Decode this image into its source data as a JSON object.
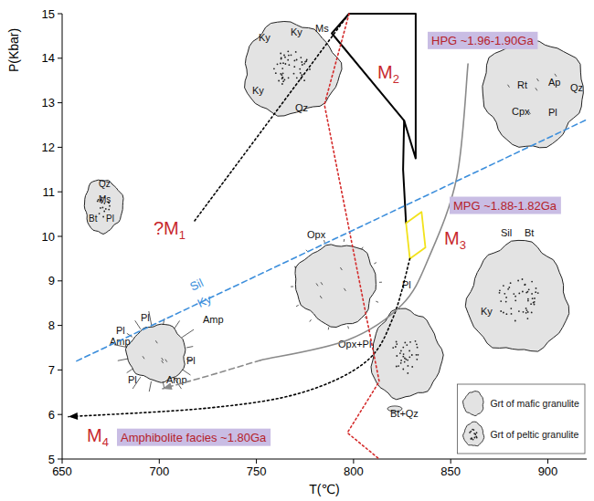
{
  "chart_data": {
    "type": "line",
    "xlabel": "T(℃)",
    "ylabel": "P(Kbar)",
    "xlim": [
      650,
      920
    ],
    "xticks": [
      650,
      700,
      750,
      800,
      850,
      900
    ],
    "ylim": [
      5,
      15
    ],
    "yticks": [
      5,
      6,
      7,
      8,
      9,
      10,
      11,
      12,
      13,
      14,
      15
    ],
    "grid": false,
    "series": [
      {
        "type": "line",
        "x": [
          718.2,
          797.7
        ],
        "values": [
          10.35,
          15
        ],
        "color": "#000000",
        "line_style": "dotted"
      },
      {
        "type": "line",
        "x": [
          797.7,
          832,
          832,
          826,
          788.8,
          797.7
        ],
        "values": [
          15,
          15,
          11.75,
          12.6,
          14.56,
          15
        ],
        "color": "#000000",
        "line_style": "solid"
      },
      {
        "type": "line",
        "x": [
          826,
          825.5,
          827
        ],
        "values": [
          12.6,
          11.5,
          10.3
        ],
        "color": "#000000",
        "line_style": "solid"
      },
      {
        "type": "line",
        "x": [
          827,
          835,
          837,
          829,
          827
        ],
        "values": [
          10.3,
          10.55,
          9.75,
          9.5,
          10.3
        ],
        "color": "#f2e21b",
        "line_style": "solid"
      },
      {
        "type": "spline",
        "x": [
          829,
          820.3,
          806.2,
          773.2,
          726.2,
          653.3
        ],
        "values": [
          9.5,
          8.17,
          7.18,
          6.49,
          6.15,
          5.95
        ],
        "color": "#000000",
        "line_style": "dotted",
        "marker": "arrow"
      },
      {
        "type": "spline",
        "x": [
          858.9,
          853.2,
          839,
          825,
          796.8,
          752.1
        ],
        "values": [
          13.87,
          11.34,
          9.55,
          8.47,
          7.67,
          7.22
        ],
        "color": "#8a8a8a",
        "line_style": "solid"
      },
      {
        "type": "line",
        "x": [
          752.1,
          726.2,
          701.7
        ],
        "values": [
          7.22,
          6.88,
          6.58
        ],
        "color": "#8a8a8a",
        "line_style": "dashed",
        "marker": "arrow"
      },
      {
        "type": "line",
        "x": [
          797.7,
          785,
          813.2,
          796.8,
          813.2
        ],
        "values": [
          15,
          12.96,
          6.74,
          5.59,
          5.0
        ],
        "color": "#d42a2a",
        "line_style": "dotted"
      },
      {
        "type": "line",
        "x": [
          657.5,
          920
        ],
        "values": [
          7.2,
          12.62
        ],
        "color": "#3d8fdc",
        "line_style": "dashed"
      }
    ],
    "annotations": [
      "?M1",
      "M2",
      "M3",
      "M4",
      "HPG ~1.96-1.90Ga",
      "MPG ~1.88-1.82Ga",
      "Amphibolite facies ~1.80Ga",
      "Ky",
      "Sil"
    ],
    "sketches": [
      {
        "marker": "dotted",
        "minerals": [
          "Ky",
          "Ky",
          "Ms",
          "Ky",
          "Qz"
        ]
      },
      {
        "marker": "dotted",
        "minerals": [
          "Qz",
          "Ms",
          "Bt",
          "Pl"
        ]
      },
      {
        "marker": "plain",
        "minerals": [
          "Rt",
          "Ap",
          "Qz",
          "Cpx",
          "Pl"
        ]
      },
      {
        "marker": "plain",
        "minerals": [
          "Opx",
          "Pl",
          "Opx+Pl"
        ]
      },
      {
        "marker": "plain",
        "minerals": [
          "Pl",
          "Pl",
          "Amp",
          "Amp",
          "Pl",
          "Pl",
          "Amp"
        ]
      },
      {
        "marker": "dotted",
        "minerals": [
          "Sil",
          "Bt",
          "Ky"
        ]
      },
      {
        "marker": "dotted",
        "minerals": [
          "Bt+Qz"
        ]
      }
    ],
    "legend": "bottom-right",
    "legend_items": [
      {
        "label": "Grt of mafic granulite",
        "marker": "plain"
      },
      {
        "label": "Grt of peltic granulite",
        "marker": "dotted"
      }
    ]
  }
}
